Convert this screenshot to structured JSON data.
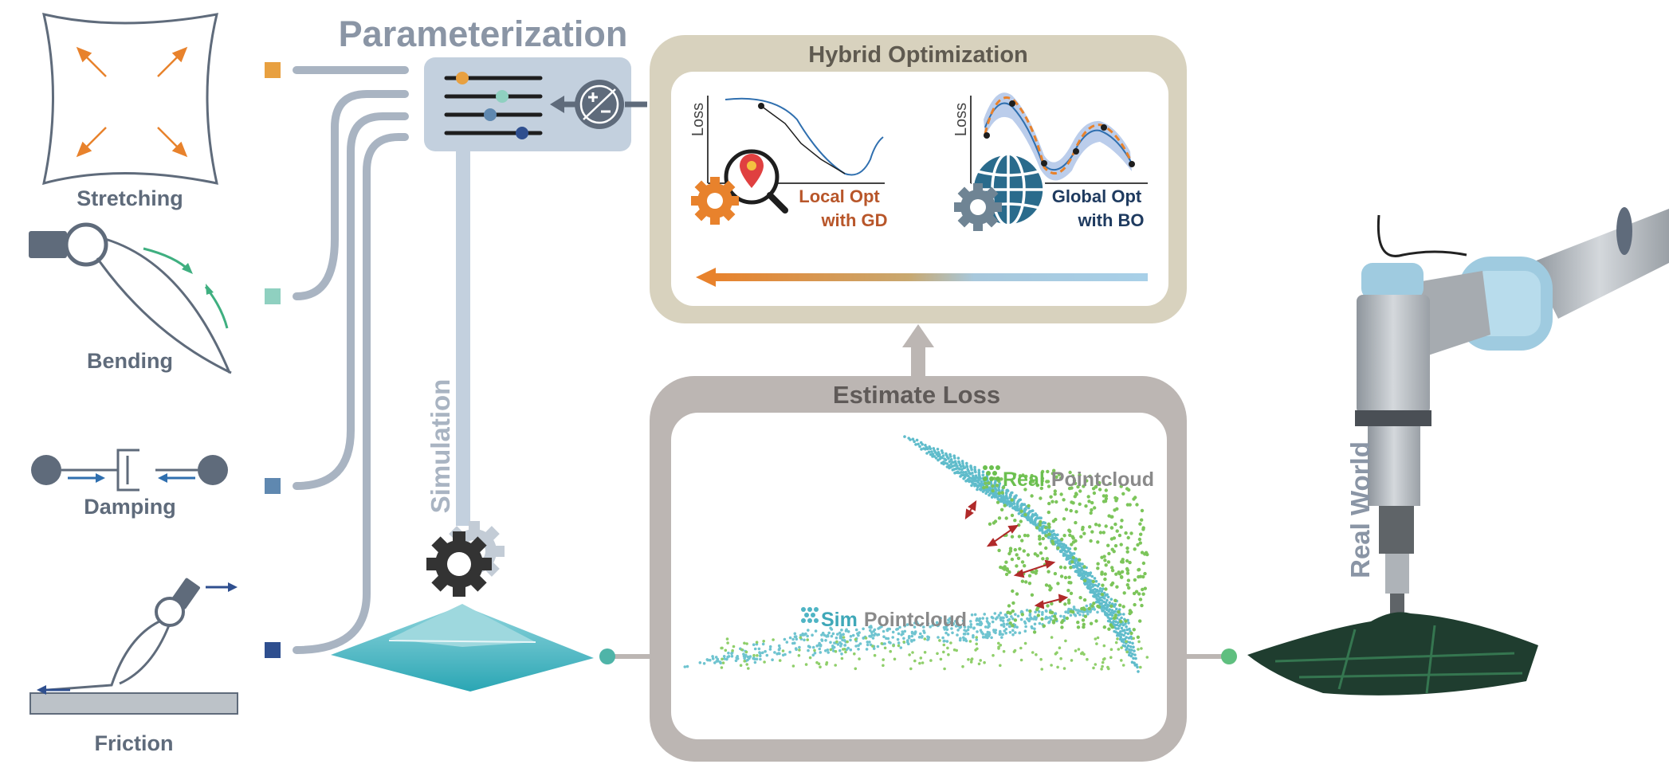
{
  "params": {
    "title": "Parameterization",
    "stretching": "Stretching",
    "bending": "Bending",
    "damping": "Damping",
    "friction": "Friction"
  },
  "simulation": {
    "label": "Simulation"
  },
  "hybrid": {
    "title": "Hybrid Optimization",
    "loss_axis": "Loss",
    "local_line1": "Local Opt",
    "local_line2": "with GD",
    "global_line1": "Global Opt",
    "global_line2": "with BO"
  },
  "estimate": {
    "title": "Estimate Loss",
    "real_word": "Real",
    "sim_word": "Sim",
    "pointcloud": "Pointcloud"
  },
  "realworld": {
    "label": "Real World"
  },
  "colors": {
    "orange": "#E8822C",
    "teal": "#5BBFB5",
    "blue_gray": "#5F7F9F",
    "navy": "#2F4F8F",
    "slate": "#5F6B7B",
    "green": "#6BBF4F",
    "cyan": "#4FB4C4",
    "hybrid_frame": "#D8D2BE",
    "loss_frame": "#BCB6B3"
  }
}
